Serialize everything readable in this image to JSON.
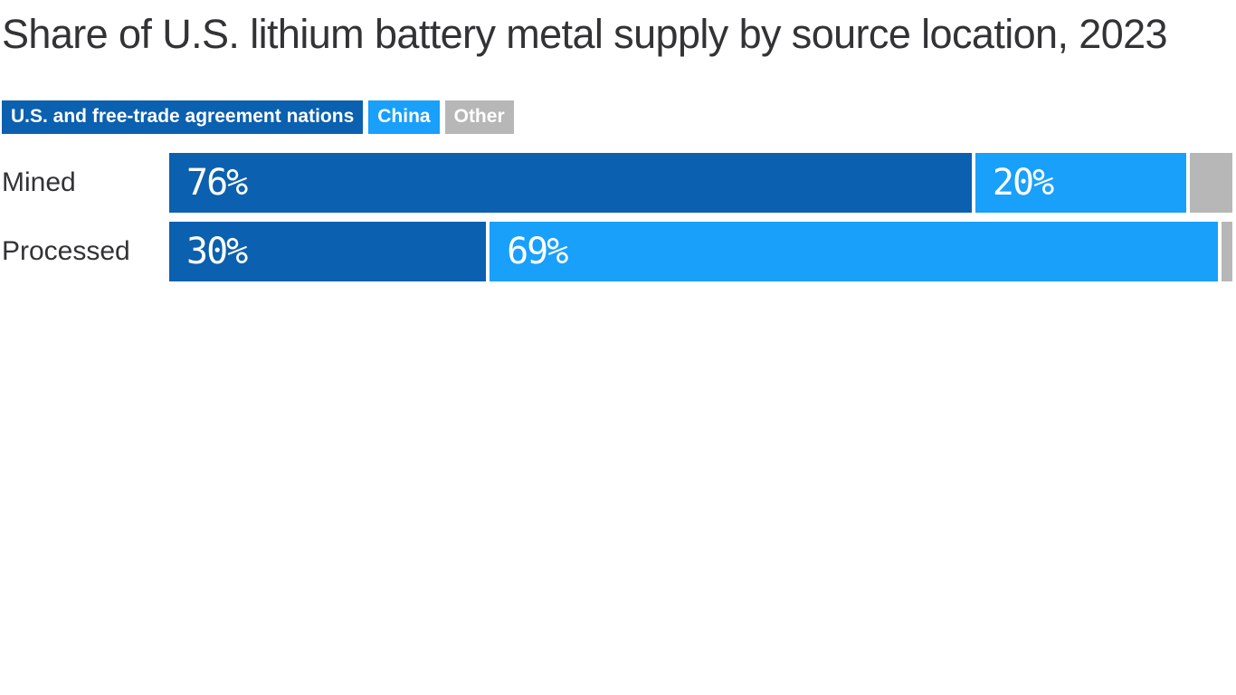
{
  "title": "Share of U.S. lithium battery metal supply by source location, 2023",
  "colors": {
    "us_fta": "#0b60af",
    "china": "#18a0fb",
    "other": "#b7b7b7",
    "title_text": "#333336",
    "bar_label_text": "#ffffff",
    "background": "#ffffff"
  },
  "legend": {
    "items": [
      {
        "label": "U.S. and free-trade agreement nations",
        "color_key": "us_fta"
      },
      {
        "label": "China",
        "color_key": "china"
      },
      {
        "label": "Other",
        "color_key": "other"
      }
    ]
  },
  "chart_data": {
    "type": "bar",
    "subtype": "horizontal-stacked",
    "title": "Share of U.S. lithium battery metal supply by source location, 2023",
    "unit": "%",
    "categories": [
      "Mined",
      "Processed"
    ],
    "series": [
      {
        "name": "U.S. and free-trade agreement nations",
        "color_key": "us_fta",
        "values": [
          76,
          30
        ]
      },
      {
        "name": "China",
        "color_key": "china",
        "values": [
          20,
          69
        ]
      },
      {
        "name": "Other",
        "color_key": "other",
        "values": [
          4,
          1
        ]
      }
    ],
    "data_labels": [
      [
        "76%",
        "20%",
        ""
      ],
      [
        "30%",
        "69%",
        ""
      ]
    ],
    "xlim": [
      0,
      100
    ],
    "xlabel": "",
    "ylabel": "",
    "grid": false,
    "legend_position": "top"
  }
}
